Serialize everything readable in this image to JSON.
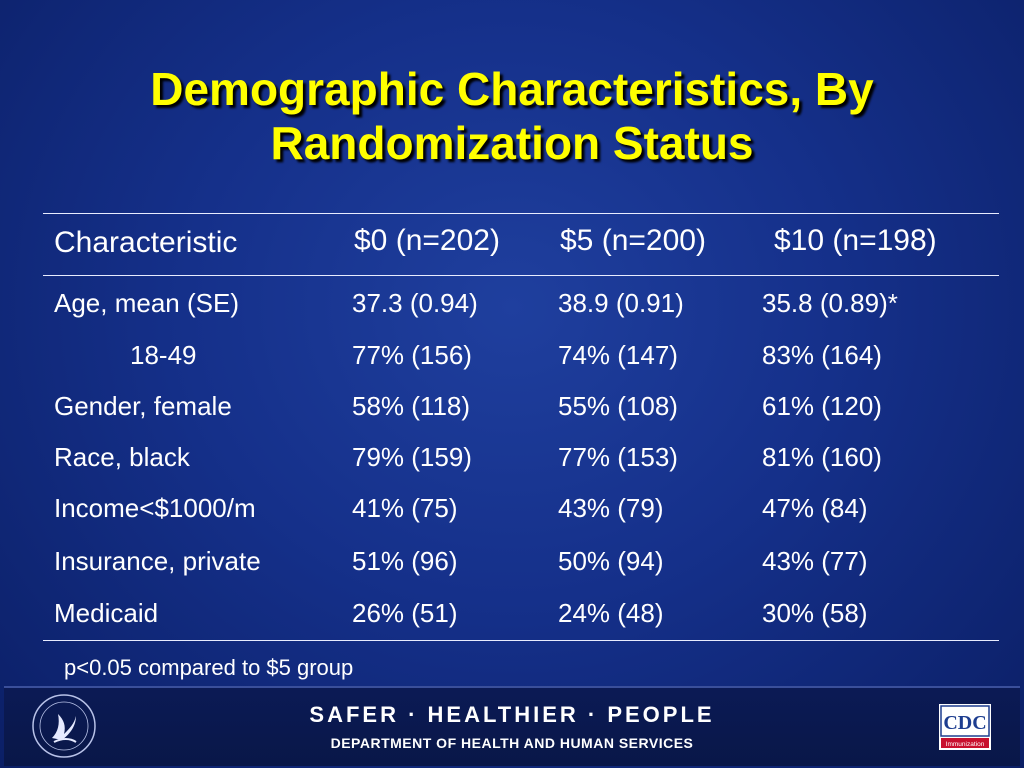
{
  "slide": {
    "title_line1": "Demographic Characteristics, By",
    "title_line2": "Randomization Status",
    "footnote": "p<0.05 compared to $5 group"
  },
  "table": {
    "headers": [
      "Characteristic",
      "$0 (n=202)",
      "$5 (n=200)",
      "$10 (n=198)"
    ],
    "rows": [
      [
        "Age, mean (SE)",
        "37.3 (0.94)",
        "38.9 (0.91)",
        "35.8 (0.89)*"
      ],
      [
        "18-49",
        "77% (156)",
        "74% (147)",
        "83% (164)"
      ],
      [
        "Gender, female",
        "58% (118)",
        "55% (108)",
        "61% (120)"
      ],
      [
        "Race, black",
        "79% (159)",
        "77% (153)",
        "81% (160)"
      ],
      [
        "Income<$1000/m",
        "41% (75)",
        "43% (79)",
        "47% (84)"
      ],
      [
        "Insurance, private",
        "51% (96)",
        "50% (94)",
        "43% (77)"
      ],
      [
        "Medicaid",
        "26% (51)",
        "24% (48)",
        "30% (58)"
      ]
    ]
  },
  "footer": {
    "slogan": "SAFER · HEALTHIER · PEOPLE",
    "department": "DEPARTMENT OF HEALTH AND HUMAN SERVICES",
    "seal_icon": "hhs-eagle-seal-icon",
    "cdc_logo_text": "CDC",
    "cdc_logo_subtext": "Immunization"
  },
  "colors": {
    "title": "#ffff00",
    "text": "#ffffff",
    "background": "#15308a",
    "cdc_red": "#c8102e"
  }
}
